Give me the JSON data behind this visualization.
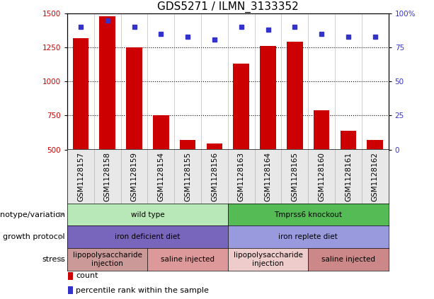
{
  "title": "GDS5271 / ILMN_3133352",
  "samples": [
    "GSM1128157",
    "GSM1128158",
    "GSM1128159",
    "GSM1128154",
    "GSM1128155",
    "GSM1128156",
    "GSM1128163",
    "GSM1128164",
    "GSM1128165",
    "GSM1128160",
    "GSM1128161",
    "GSM1128162"
  ],
  "counts": [
    1320,
    1480,
    1250,
    750,
    570,
    545,
    1130,
    1260,
    1290,
    790,
    640,
    570
  ],
  "percentiles": [
    90,
    95,
    90,
    85,
    83,
    81,
    90,
    88,
    90,
    85,
    83,
    83
  ],
  "ylim_left": [
    500,
    1500
  ],
  "ylim_right": [
    0,
    100
  ],
  "yticks_left": [
    500,
    750,
    1000,
    1250,
    1500
  ],
  "yticks_right": [
    0,
    25,
    50,
    75,
    100
  ],
  "bar_color": "#cc0000",
  "dot_color": "#3333cc",
  "annotation_rows": [
    {
      "label": "genotype/variation",
      "segments": [
        {
          "text": "wild type",
          "span": 6,
          "color": "#b8e8b8"
        },
        {
          "text": "Tmprss6 knockout",
          "span": 6,
          "color": "#55bb55"
        }
      ]
    },
    {
      "label": "growth protocol",
      "segments": [
        {
          "text": "iron deficient diet",
          "span": 6,
          "color": "#7766bb"
        },
        {
          "text": "iron replete diet",
          "span": 6,
          "color": "#9999dd"
        }
      ]
    },
    {
      "label": "stress",
      "segments": [
        {
          "text": "lipopolysaccharide\ninjection",
          "span": 3,
          "color": "#cc9999"
        },
        {
          "text": "saline injected",
          "span": 3,
          "color": "#dd9999"
        },
        {
          "text": "lipopolysaccharide\ninjection",
          "span": 3,
          "color": "#eecccc"
        },
        {
          "text": "saline injected",
          "span": 3,
          "color": "#cc8888"
        }
      ]
    }
  ],
  "legend_items": [
    {
      "label": "count",
      "color": "#cc0000"
    },
    {
      "label": "percentile rank within the sample",
      "color": "#3333cc"
    }
  ],
  "left_axis_color": "#cc0000",
  "right_axis_color": "#3333cc",
  "title_fontsize": 11,
  "tick_fontsize": 7.5,
  "label_fontsize": 8,
  "annotation_fontsize": 7.5,
  "bg_color": "#e8e8e8"
}
